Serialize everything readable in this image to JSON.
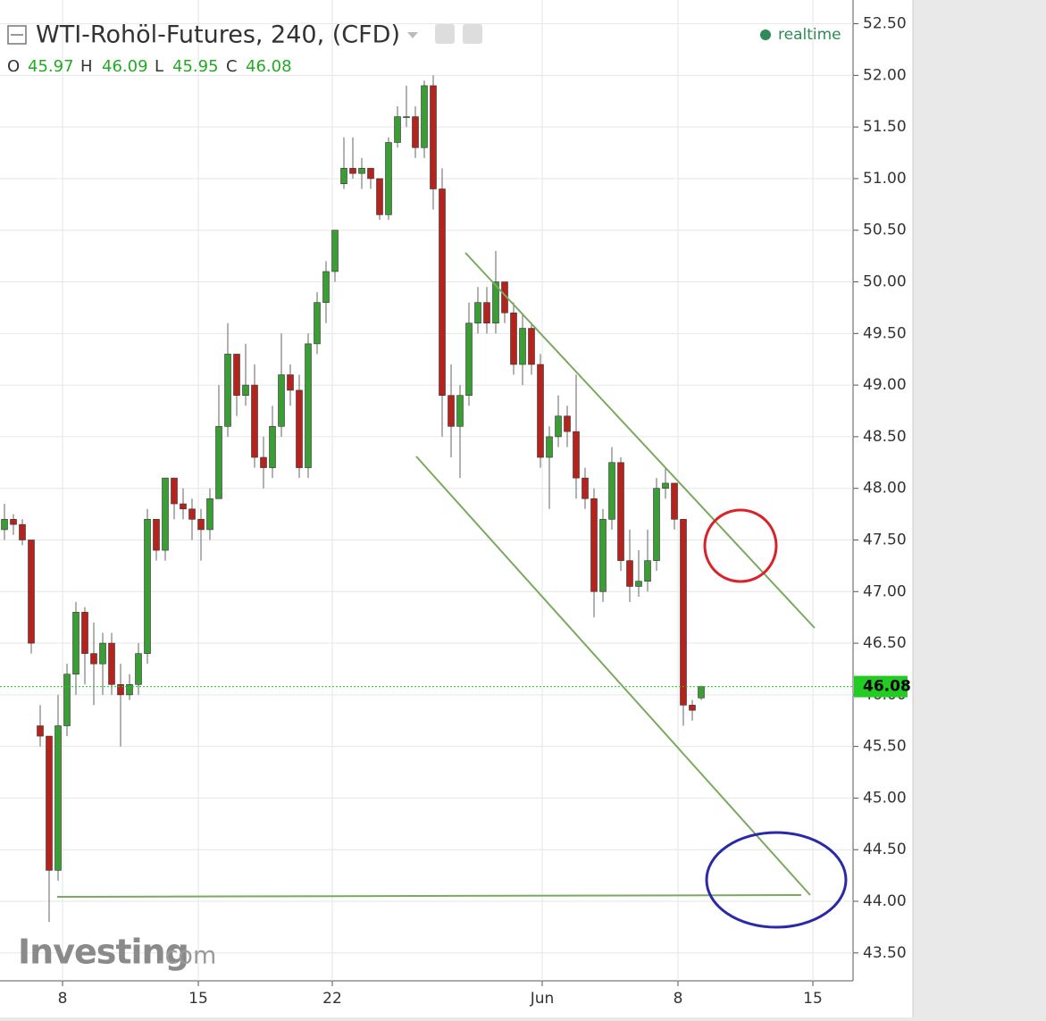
{
  "chart_data": {
    "type": "candlestick",
    "title": "WTI-Rohöl-Futures, 240, (CFD)",
    "status": "realtime",
    "ohlc_labels": [
      "O",
      "H",
      "L",
      "C"
    ],
    "watermark": {
      "brand": "Investing",
      "suffix": ".com"
    },
    "up_color": "#3c9c36",
    "down_color": "#b3241e",
    "last_price_color": "#22cc22",
    "open": [
      47.6,
      47.7,
      47.65,
      47.5,
      45.7,
      45.6,
      44.3,
      45.7,
      46.2,
      46.8,
      46.4,
      46.3,
      46.5,
      46.1,
      46.0,
      46.1,
      46.4,
      47.7,
      47.4,
      48.1,
      47.85,
      47.8,
      47.7,
      47.6,
      47.9,
      48.6,
      49.3,
      48.9,
      49.0,
      48.3,
      48.2,
      48.6,
      49.1,
      48.95,
      48.2,
      49.4,
      49.8,
      50.1,
      50.95,
      51.1,
      51.05,
      51.1,
      51.0,
      50.65,
      51.35,
      51.6,
      51.6,
      51.3,
      51.9,
      50.9,
      48.9,
      48.6,
      48.9,
      49.6,
      49.8,
      49.6,
      50.0,
      49.7,
      49.2,
      49.55,
      49.2,
      48.3,
      48.5,
      48.7,
      48.55,
      48.1,
      47.9,
      47.0,
      47.7,
      48.25,
      47.3,
      47.05,
      47.1,
      47.3,
      48.0,
      48.05,
      47.7,
      45.9,
      45.97
    ],
    "high": [
      47.85,
      47.75,
      47.7,
      47.5,
      45.9,
      45.6,
      46.0,
      46.3,
      46.9,
      46.85,
      46.7,
      46.6,
      46.6,
      46.3,
      46.2,
      46.5,
      47.8,
      47.7,
      48.1,
      48.1,
      48.0,
      47.9,
      47.8,
      48.0,
      49.0,
      49.6,
      49.3,
      49.4,
      49.2,
      48.5,
      48.8,
      49.5,
      49.2,
      49.1,
      49.5,
      49.9,
      50.2,
      50.5,
      51.4,
      51.4,
      51.2,
      51.1,
      51.0,
      51.4,
      51.7,
      51.9,
      51.7,
      51.95,
      52.0,
      51.1,
      49.2,
      49.0,
      49.8,
      49.95,
      49.95,
      50.3,
      50.0,
      49.8,
      49.7,
      49.6,
      49.3,
      48.6,
      48.9,
      48.8,
      49.1,
      48.2,
      48.0,
      47.8,
      48.4,
      48.3,
      47.6,
      47.4,
      47.6,
      48.1,
      48.2,
      48.05,
      47.7,
      45.95,
      46.09
    ],
    "low": [
      47.5,
      47.55,
      47.45,
      46.4,
      45.5,
      43.8,
      44.2,
      45.6,
      46.0,
      46.1,
      45.9,
      46.0,
      46.0,
      45.5,
      45.95,
      46.0,
      46.3,
      47.3,
      47.3,
      47.7,
      47.7,
      47.5,
      47.3,
      47.5,
      47.9,
      48.5,
      48.7,
      48.8,
      48.2,
      48.0,
      48.1,
      48.5,
      48.8,
      48.1,
      48.1,
      49.3,
      49.6,
      50.0,
      50.9,
      51.0,
      50.9,
      50.9,
      50.6,
      50.6,
      51.3,
      51.5,
      51.2,
      51.2,
      50.7,
      48.5,
      48.3,
      48.1,
      48.8,
      49.5,
      49.5,
      49.5,
      49.6,
      49.1,
      49.0,
      49.1,
      48.2,
      47.8,
      48.4,
      48.4,
      47.9,
      47.8,
      46.75,
      46.9,
      47.6,
      47.2,
      46.9,
      46.95,
      47.0,
      47.2,
      47.9,
      47.6,
      45.7,
      45.75,
      45.95
    ],
    "close": [
      47.7,
      47.65,
      47.5,
      46.5,
      45.6,
      44.3,
      45.7,
      46.2,
      46.8,
      46.4,
      46.3,
      46.5,
      46.1,
      46.0,
      46.1,
      46.4,
      47.7,
      47.4,
      48.1,
      47.85,
      47.8,
      47.7,
      47.6,
      47.9,
      48.6,
      49.3,
      48.9,
      49.0,
      48.3,
      48.2,
      48.6,
      49.1,
      48.95,
      48.2,
      49.4,
      49.8,
      50.1,
      50.5,
      51.1,
      51.05,
      51.1,
      51.0,
      50.65,
      51.35,
      51.6,
      51.6,
      51.3,
      51.9,
      50.9,
      48.9,
      48.6,
      48.9,
      49.6,
      49.8,
      49.6,
      50.0,
      49.7,
      49.2,
      49.55,
      49.2,
      48.3,
      48.5,
      48.7,
      48.55,
      48.1,
      47.9,
      47.0,
      47.7,
      48.25,
      47.3,
      47.05,
      47.1,
      47.3,
      48.0,
      48.05,
      47.7,
      45.9,
      45.85,
      46.08
    ],
    "ylim": [
      43.23,
      52.73
    ],
    "yticks": [
      {
        "value": 43.5,
        "label": "43.50"
      },
      {
        "value": 44,
        "label": "44.00"
      },
      {
        "value": 44.5,
        "label": "44.50"
      },
      {
        "value": 45,
        "label": "45.00"
      },
      {
        "value": 45.5,
        "label": "45.50"
      },
      {
        "value": 46,
        "label": "46.00"
      },
      {
        "value": 46.5,
        "label": "46.50"
      },
      {
        "value": 47,
        "label": "47.00"
      },
      {
        "value": 47.5,
        "label": "47.50"
      },
      {
        "value": 48,
        "label": "48.00"
      },
      {
        "value": 48.5,
        "label": "48.50"
      },
      {
        "value": 49,
        "label": "49.00"
      },
      {
        "value": 49.5,
        "label": "49.50"
      },
      {
        "value": 50,
        "label": "50.00"
      },
      {
        "value": 50.5,
        "label": "50.50"
      },
      {
        "value": 51,
        "label": "51.00"
      },
      {
        "value": 51.5,
        "label": "51.50"
      },
      {
        "value": 52,
        "label": "52.00"
      },
      {
        "value": 52.5,
        "label": "52.50"
      }
    ],
    "xlim": [
      -0.5,
      94.7
    ],
    "xticks": [
      {
        "value": 6.5,
        "label": "8"
      },
      {
        "value": 21.7,
        "label": "15"
      },
      {
        "value": 36.7,
        "label": "22"
      },
      {
        "value": 60.2,
        "label": "Jun"
      },
      {
        "value": 75.4,
        "label": "8"
      },
      {
        "value": 90.5,
        "label": "15"
      }
    ],
    "grid": true
  }
}
